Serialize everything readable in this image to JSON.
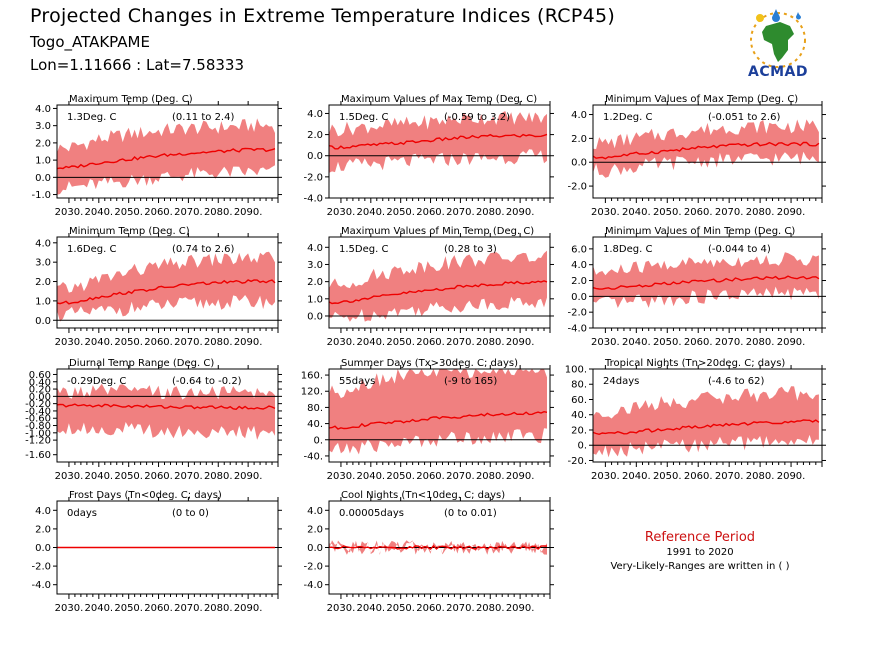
{
  "header": {
    "title": "Projected Changes in Extreme Temperature Indices (RCP45)",
    "station": "Togo_ATAKPAME",
    "coords": "Lon=1.11666 : Lat=7.58333"
  },
  "logo": {
    "text": "ACMAD",
    "icon": "africa-map-logo-icon"
  },
  "reference": {
    "title": "Reference Period",
    "years": "1991 to 2020",
    "note": "Very-Likely-Ranges are written in ( )"
  },
  "colors": {
    "mean_line": "#ee0000",
    "range_fill": "#f08080",
    "ref_title": "#cc1111",
    "logo_text": "#1c3f9a"
  },
  "chart_data": [
    {
      "type": "area",
      "title": "Maximum Temp (Deg. C)",
      "value_label": "1.3Deg. C",
      "range_label": "(0.11 to 2.4)",
      "x": [
        2030,
        2040,
        2050,
        2060,
        2070,
        2080,
        2090
      ],
      "x_tick_labels": [
        "2030.",
        "2040.",
        "2050.",
        "2060.",
        "2070.",
        "2080.",
        "2090."
      ],
      "ylim": [
        -1.2,
        4.2
      ],
      "yticks": [
        4.0,
        3.0,
        2.0,
        1.0,
        0.0,
        -1.0
      ],
      "ytick_labels": [
        "4.0",
        "3.0",
        "2.0",
        "1.0",
        "0.0",
        "-1.0"
      ],
      "series": {
        "years": [
          2030,
          2040,
          2050,
          2060,
          2070,
          2080,
          2090,
          2099
        ],
        "mean": [
          0.55,
          0.85,
          1.05,
          1.25,
          1.4,
          1.5,
          1.6,
          1.6
        ],
        "low": [
          -0.6,
          -0.4,
          -0.2,
          0.0,
          0.15,
          0.25,
          0.3,
          0.35
        ],
        "high": [
          1.7,
          2.2,
          2.5,
          2.7,
          2.85,
          2.9,
          3.0,
          3.0
        ]
      }
    },
    {
      "type": "area",
      "title": "Maximum Values of Max Temp (Deg. C)",
      "value_label": "1.5Deg. C",
      "range_label": "(-0.59 to 3.2)",
      "x": [
        2030,
        2040,
        2050,
        2060,
        2070,
        2080,
        2090
      ],
      "x_tick_labels": [
        "2030.",
        "2040.",
        "2050.",
        "2060.",
        "2070.",
        "2080.",
        "2090."
      ],
      "ylim": [
        -4.0,
        4.8
      ],
      "yticks": [
        4.0,
        2.0,
        0.0,
        -2.0,
        -4.0
      ],
      "ytick_labels": [
        "4.0",
        "2.0",
        "0.0",
        "-2.0",
        "-4.0"
      ],
      "series": {
        "years": [
          2030,
          2040,
          2050,
          2060,
          2070,
          2080,
          2090,
          2099
        ],
        "mean": [
          0.8,
          1.0,
          1.2,
          1.45,
          1.7,
          1.85,
          1.9,
          1.9
        ],
        "low": [
          -1.0,
          -0.8,
          -0.6,
          -0.4,
          -0.3,
          -0.2,
          -0.1,
          0.0
        ],
        "high": [
          2.5,
          2.8,
          3.0,
          3.2,
          3.5,
          3.6,
          3.6,
          3.6
        ]
      }
    },
    {
      "type": "area",
      "title": "Minimum Values of Max Temp (Deg. C)",
      "value_label": "1.2Deg. C",
      "range_label": "(-0.051 to 2.6)",
      "x": [
        2030,
        2040,
        2050,
        2060,
        2070,
        2080,
        2090
      ],
      "x_tick_labels": [
        "2030.",
        "2040.",
        "2050.",
        "2060.",
        "2070.",
        "2080.",
        "2090."
      ],
      "ylim": [
        -3.0,
        4.8
      ],
      "yticks": [
        4.0,
        2.0,
        0.0,
        -2.0
      ],
      "ytick_labels": [
        "4.0",
        "2.0",
        "0.0",
        "-2.0"
      ],
      "series": {
        "years": [
          2030,
          2040,
          2050,
          2060,
          2070,
          2080,
          2090,
          2099
        ],
        "mean": [
          0.4,
          0.7,
          0.95,
          1.2,
          1.4,
          1.5,
          1.55,
          1.5
        ],
        "low": [
          -0.7,
          -0.4,
          -0.1,
          0.1,
          0.2,
          0.3,
          0.35,
          0.35
        ],
        "high": [
          1.6,
          2.0,
          2.4,
          2.7,
          2.9,
          3.0,
          3.0,
          3.0
        ]
      }
    },
    {
      "type": "area",
      "title": "Minimum Temp (Deg. C)",
      "value_label": "1.6Deg. C",
      "range_label": "(0.74 to 2.6)",
      "x": [
        2030,
        2040,
        2050,
        2060,
        2070,
        2080,
        2090
      ],
      "x_tick_labels": [
        "2030.",
        "2040.",
        "2050.",
        "2060.",
        "2070.",
        "2080.",
        "2090."
      ],
      "ylim": [
        -0.4,
        4.3
      ],
      "yticks": [
        4.0,
        3.0,
        2.0,
        1.0,
        0.0
      ],
      "ytick_labels": [
        "4.0",
        "3.0",
        "2.0",
        "1.0",
        "0.0"
      ],
      "series": {
        "years": [
          2030,
          2040,
          2050,
          2060,
          2070,
          2080,
          2090,
          2099
        ],
        "mean": [
          0.9,
          1.2,
          1.45,
          1.65,
          1.85,
          1.95,
          2.0,
          2.0
        ],
        "low": [
          0.3,
          0.45,
          0.6,
          0.75,
          0.85,
          0.9,
          0.95,
          0.95
        ],
        "high": [
          1.6,
          2.1,
          2.5,
          2.8,
          3.0,
          3.15,
          3.2,
          3.2
        ]
      }
    },
    {
      "type": "area",
      "title": "Maximum Values of Min Temp (Deg. C)",
      "value_label": "1.5Deg. C",
      "range_label": "(0.28 to 3)",
      "x": [
        2030,
        2040,
        2050,
        2060,
        2070,
        2080,
        2090
      ],
      "x_tick_labels": [
        "2030.",
        "2040.",
        "2050.",
        "2060.",
        "2070.",
        "2080.",
        "2090."
      ],
      "ylim": [
        -0.7,
        4.6
      ],
      "yticks": [
        4.0,
        3.0,
        2.0,
        1.0,
        0.0
      ],
      "ytick_labels": [
        "4.0",
        "3.0",
        "2.0",
        "1.0",
        "0.0"
      ],
      "series": {
        "years": [
          2030,
          2040,
          2050,
          2060,
          2070,
          2080,
          2090,
          2099
        ],
        "mean": [
          0.8,
          1.05,
          1.3,
          1.5,
          1.7,
          1.85,
          1.95,
          2.0
        ],
        "low": [
          -0.1,
          0.1,
          0.3,
          0.45,
          0.6,
          0.7,
          0.8,
          0.8
        ],
        "high": [
          1.8,
          2.3,
          2.7,
          3.0,
          3.2,
          3.35,
          3.4,
          3.4
        ]
      }
    },
    {
      "type": "area",
      "title": "Minimum Values of Min Temp (Deg. C)",
      "value_label": "1.8Deg. C",
      "range_label": "(-0.044 to 4)",
      "x": [
        2030,
        2040,
        2050,
        2060,
        2070,
        2080,
        2090
      ],
      "x_tick_labels": [
        "2030.",
        "2040.",
        "2050.",
        "2060.",
        "2070.",
        "2080.",
        "2090."
      ],
      "ylim": [
        -4.0,
        7.5
      ],
      "yticks": [
        6.0,
        4.0,
        2.0,
        0.0,
        -2.0,
        -4.0
      ],
      "ytick_labels": [
        "6.0",
        "4.0",
        "2.0",
        "0.0",
        "-2.0",
        "-4.0"
      ],
      "series": {
        "years": [
          2030,
          2040,
          2050,
          2060,
          2070,
          2080,
          2090,
          2099
        ],
        "mean": [
          1.0,
          1.3,
          1.6,
          1.9,
          2.1,
          2.3,
          2.4,
          2.4
        ],
        "low": [
          -1.0,
          -0.7,
          -0.4,
          -0.1,
          0.1,
          0.3,
          0.4,
          0.4
        ],
        "high": [
          3.0,
          3.6,
          4.0,
          4.3,
          4.5,
          4.6,
          4.7,
          4.7
        ]
      }
    },
    {
      "type": "area",
      "title": "Diurnal Temp Range (Deg. C)",
      "value_label": "-0.29Deg. C",
      "range_label": "(-0.64 to -0.2)",
      "x": [
        2030,
        2040,
        2050,
        2060,
        2070,
        2080,
        2090
      ],
      "x_tick_labels": [
        "2030.",
        "2040.",
        "2050.",
        "2060.",
        "2070.",
        "2080.",
        "2090."
      ],
      "ylim": [
        -1.8,
        0.75
      ],
      "yticks": [
        0.6,
        0.4,
        0.2,
        0.0,
        -0.2,
        -0.4,
        -0.6,
        -0.8,
        -1.0,
        -1.2,
        -1.6
      ],
      "ytick_labels": [
        "0.60",
        "0.40",
        "0.20",
        "0.00",
        "-0.20",
        "-0.40",
        "-0.60",
        "-0.80",
        "-1.00",
        "-1.20",
        "-1.60"
      ],
      "series": {
        "years": [
          2030,
          2040,
          2050,
          2060,
          2070,
          2080,
          2090,
          2099
        ],
        "mean": [
          -0.25,
          -0.25,
          -0.27,
          -0.28,
          -0.3,
          -0.3,
          -0.32,
          -0.3
        ],
        "low": [
          -0.85,
          -0.9,
          -0.9,
          -0.95,
          -0.95,
          -1.0,
          -1.0,
          -1.0
        ],
        "high": [
          0.1,
          0.15,
          0.15,
          0.1,
          0.1,
          0.1,
          0.1,
          0.1
        ]
      }
    },
    {
      "type": "area",
      "title": "Summer Days (Tx>30deg. C; days)",
      "value_label": "55days",
      "range_label": "(-9 to 165)",
      "x": [
        2030,
        2040,
        2050,
        2060,
        2070,
        2080,
        2090
      ],
      "x_tick_labels": [
        "2030.",
        "2040.",
        "2050.",
        "2060.",
        "2070.",
        "2080.",
        "2090."
      ],
      "ylim": [
        -55,
        175
      ],
      "yticks": [
        160,
        120,
        80,
        40,
        0,
        -40
      ],
      "ytick_labels": [
        "160.",
        "120.",
        "80.",
        "40.",
        "0.",
        "-40."
      ],
      "series": {
        "years": [
          2030,
          2040,
          2050,
          2060,
          2070,
          2080,
          2090,
          2099
        ],
        "mean": [
          30,
          38,
          45,
          52,
          58,
          62,
          65,
          68
        ],
        "low": [
          -25,
          -15,
          -8,
          0,
          5,
          8,
          10,
          10
        ],
        "high": [
          120,
          145,
          160,
          168,
          170,
          172,
          172,
          172
        ]
      }
    },
    {
      "type": "area",
      "title": "Tropical Nights (Tn>20deg. C; days)",
      "value_label": "24days",
      "range_label": "(-4.6 to 62)",
      "x": [
        2030,
        2040,
        2050,
        2060,
        2070,
        2080,
        2090
      ],
      "x_tick_labels": [
        "2030.",
        "2040.",
        "2050.",
        "2060.",
        "2070.",
        "2080.",
        "2090."
      ],
      "ylim": [
        -22,
        100
      ],
      "yticks": [
        100,
        80,
        60,
        40,
        20,
        0,
        -20
      ],
      "ytick_labels": [
        "100.",
        "80.",
        "60.",
        "40.",
        "20.",
        "0.",
        "-20."
      ],
      "series": {
        "years": [
          2030,
          2040,
          2050,
          2060,
          2070,
          2080,
          2090,
          2099
        ],
        "mean": [
          15,
          18,
          21,
          24,
          27,
          29,
          31,
          32
        ],
        "low": [
          -8,
          -5,
          -2,
          0,
          2,
          4,
          5,
          5
        ],
        "high": [
          42,
          50,
          56,
          60,
          64,
          66,
          68,
          68
        ]
      }
    },
    {
      "type": "area",
      "title": "Frost Days (Tn<0deg. C; days)",
      "value_label": "0days",
      "range_label": "(0 to 0)",
      "x": [
        2030,
        2040,
        2050,
        2060,
        2070,
        2080,
        2090
      ],
      "x_tick_labels": [
        "2030.",
        "2040.",
        "2050.",
        "2060.",
        "2070.",
        "2080.",
        "2090."
      ],
      "ylim": [
        -5,
        5
      ],
      "yticks": [
        4.0,
        2.0,
        0.0,
        -2.0,
        -4.0
      ],
      "ytick_labels": [
        "4.0",
        "2.0",
        "0.0",
        "-2.0",
        "-4.0"
      ],
      "series": {
        "years": [
          2030,
          2040,
          2050,
          2060,
          2070,
          2080,
          2090,
          2099
        ],
        "mean": [
          0,
          0,
          0,
          0,
          0,
          0,
          0,
          0
        ],
        "low": [
          0,
          0,
          0,
          0,
          0,
          0,
          0,
          0
        ],
        "high": [
          0,
          0,
          0,
          0,
          0,
          0,
          0,
          0
        ]
      }
    },
    {
      "type": "area",
      "title": "Cool Nights (Tn<10deg. C; days)",
      "value_label": "0.00005days",
      "range_label": "(0 to 0.01)",
      "x": [
        2030,
        2040,
        2050,
        2060,
        2070,
        2080,
        2090
      ],
      "x_tick_labels": [
        "2030.",
        "2040.",
        "2050.",
        "2060.",
        "2070.",
        "2080.",
        "2090."
      ],
      "ylim": [
        -5,
        5
      ],
      "yticks": [
        4.0,
        2.0,
        0.0,
        -2.0,
        -4.0
      ],
      "ytick_labels": [
        "4.0",
        "2.0",
        "0.0",
        "-2.0",
        "-4.0"
      ],
      "series": {
        "years": [
          2030,
          2040,
          2050,
          2060,
          2070,
          2080,
          2090,
          2099
        ],
        "mean": [
          0,
          0,
          0,
          0,
          0,
          0,
          0,
          0
        ],
        "low": [
          0,
          0,
          0,
          0,
          0,
          0,
          0,
          0
        ],
        "high": [
          0.01,
          0,
          0,
          0,
          0,
          0,
          0,
          0
        ]
      }
    }
  ]
}
